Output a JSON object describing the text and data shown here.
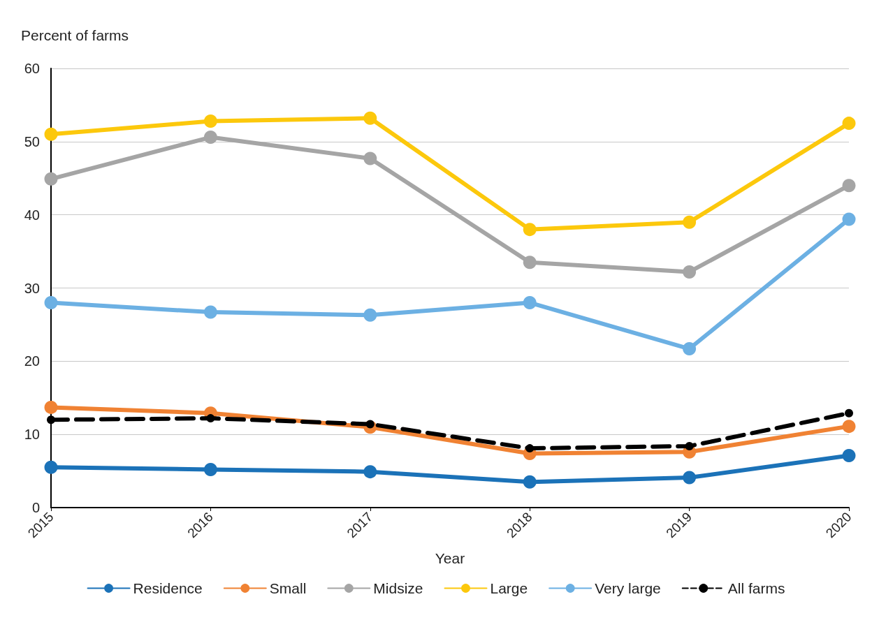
{
  "chart_data": {
    "type": "line",
    "ylabel": "Percent of farms",
    "xlabel": "Year",
    "categories": [
      "2015",
      "2016",
      "2017",
      "2018",
      "2019",
      "2020"
    ],
    "ylim": [
      0,
      60
    ],
    "yticks": [
      0,
      10,
      20,
      30,
      40,
      50,
      60
    ],
    "grid": "y",
    "legend": "bottom",
    "marker": "circle",
    "line_style": "solid",
    "series": [
      {
        "name": "Residence",
        "color": "#1b72b8",
        "values": [
          5.5,
          5.2,
          4.9,
          3.5,
          4.1,
          7.1
        ]
      },
      {
        "name": "Small",
        "color": "#f08233",
        "values": [
          13.7,
          12.9,
          11.0,
          7.4,
          7.6,
          11.1
        ]
      },
      {
        "name": "Midsize",
        "color": "#a5a5a5",
        "values": [
          44.9,
          50.6,
          47.7,
          33.5,
          32.2,
          44.0
        ]
      },
      {
        "name": "Large",
        "color": "#fcc80c",
        "values": [
          51.0,
          52.8,
          53.2,
          38.0,
          39.0,
          52.5
        ]
      },
      {
        "name": "Very large",
        "color": "#6cb0e3",
        "values": [
          28.0,
          26.7,
          26.3,
          28.0,
          21.7,
          39.4
        ]
      },
      {
        "name": "All farms",
        "color": "#000000",
        "line_style": "dashed",
        "values": [
          12.0,
          12.2,
          11.4,
          8.1,
          8.4,
          12.9
        ]
      }
    ]
  }
}
